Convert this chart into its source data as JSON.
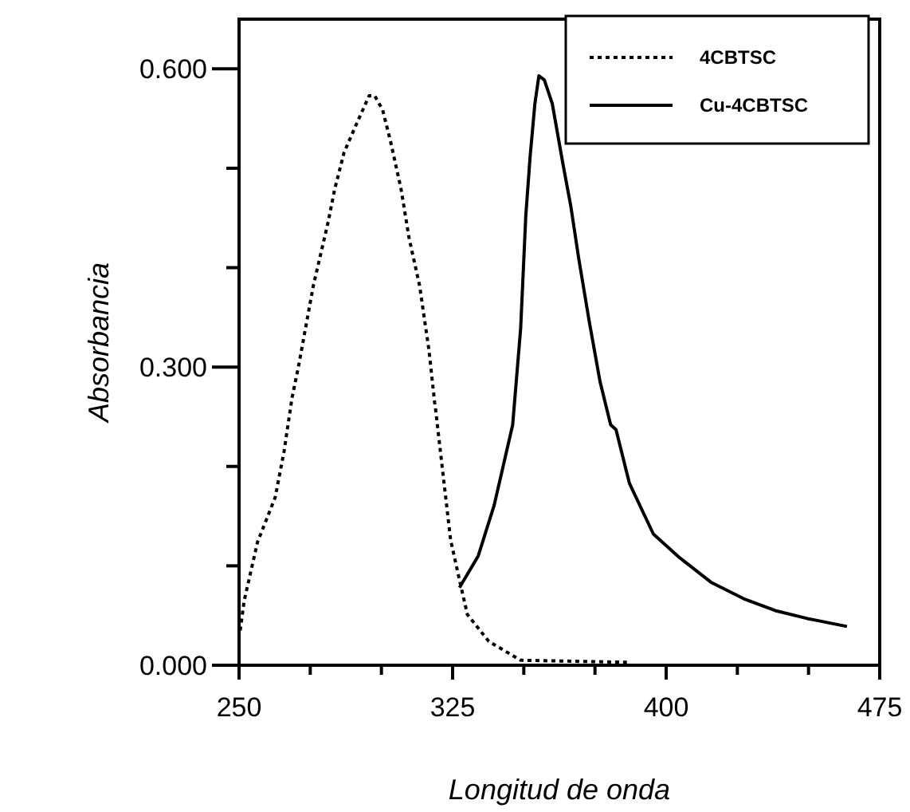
{
  "chart_data": {
    "type": "line",
    "xlabel": "Longitud de onda",
    "ylabel": "Absorbancia",
    "xlim": [
      250,
      475
    ],
    "xticks": [
      250,
      {
        "value": 275,
        "label": null
      },
      {
        "value": 300,
        "label": null
      },
      325,
      {
        "value": 350,
        "label": null
      },
      {
        "value": 375,
        "label": null
      },
      400,
      {
        "value": 425,
        "label": null
      },
      {
        "value": 450,
        "label": null
      },
      475
    ],
    "ylim": [
      0,
      0.65
    ],
    "yticks": [
      {
        "value": 0,
        "label": "0.000"
      },
      {
        "value": 0.1,
        "label": null
      },
      {
        "value": 0.2,
        "label": null
      },
      {
        "value": 0.3,
        "label": "0.300"
      },
      {
        "value": 0.4,
        "label": null
      },
      {
        "value": 0.5,
        "label": null
      },
      {
        "value": 0.6,
        "label": "0.600"
      }
    ],
    "grid": false,
    "legend": "top right",
    "marker": "none",
    "series": [
      {
        "name": "4CBTSC",
        "color": "#000000",
        "line_style": "dotted",
        "x": [
          250.4,
          251.8,
          256.5,
          262.7,
          265.8,
          268.6,
          270.9,
          276.1,
          281.3,
          283.6,
          286.9,
          291,
          295.7,
          297.6,
          300.4,
          303.2,
          306.9,
          309.7,
          313.4,
          316.7,
          318.7,
          319,
          321.8,
          324.3,
          327.4,
          330.2,
          337.7,
          348.9,
          386.2
        ],
        "values": [
          0.035,
          0.065,
          0.124,
          0.169,
          0.215,
          0.269,
          0.301,
          0.382,
          0.446,
          0.479,
          0.516,
          0.543,
          0.573,
          0.573,
          0.559,
          0.527,
          0.479,
          0.43,
          0.382,
          0.317,
          0.264,
          0.258,
          0.188,
          0.126,
          0.086,
          0.051,
          0.024,
          0.005,
          0.003
        ]
      },
      {
        "name": "Cu-4CBTSC",
        "color": "#000000",
        "line_style": "solid",
        "x": [
          327.4,
          334,
          339.6,
          346.1,
          348.9,
          350.7,
          352.2,
          353.9,
          355.3,
          357.2,
          360,
          363.7,
          366.5,
          369.3,
          373.1,
          376.8,
          380.5,
          382.4,
          387.1,
          395.5,
          404.8,
          416,
          427.2,
          438.3,
          449.5,
          463.5
        ],
        "values": [
          0.078,
          0.11,
          0.161,
          0.242,
          0.339,
          0.452,
          0.511,
          0.565,
          0.593,
          0.589,
          0.565,
          0.505,
          0.462,
          0.409,
          0.344,
          0.285,
          0.242,
          0.237,
          0.183,
          0.132,
          0.108,
          0.083,
          0.067,
          0.055,
          0.047,
          0.039
        ]
      }
    ]
  }
}
